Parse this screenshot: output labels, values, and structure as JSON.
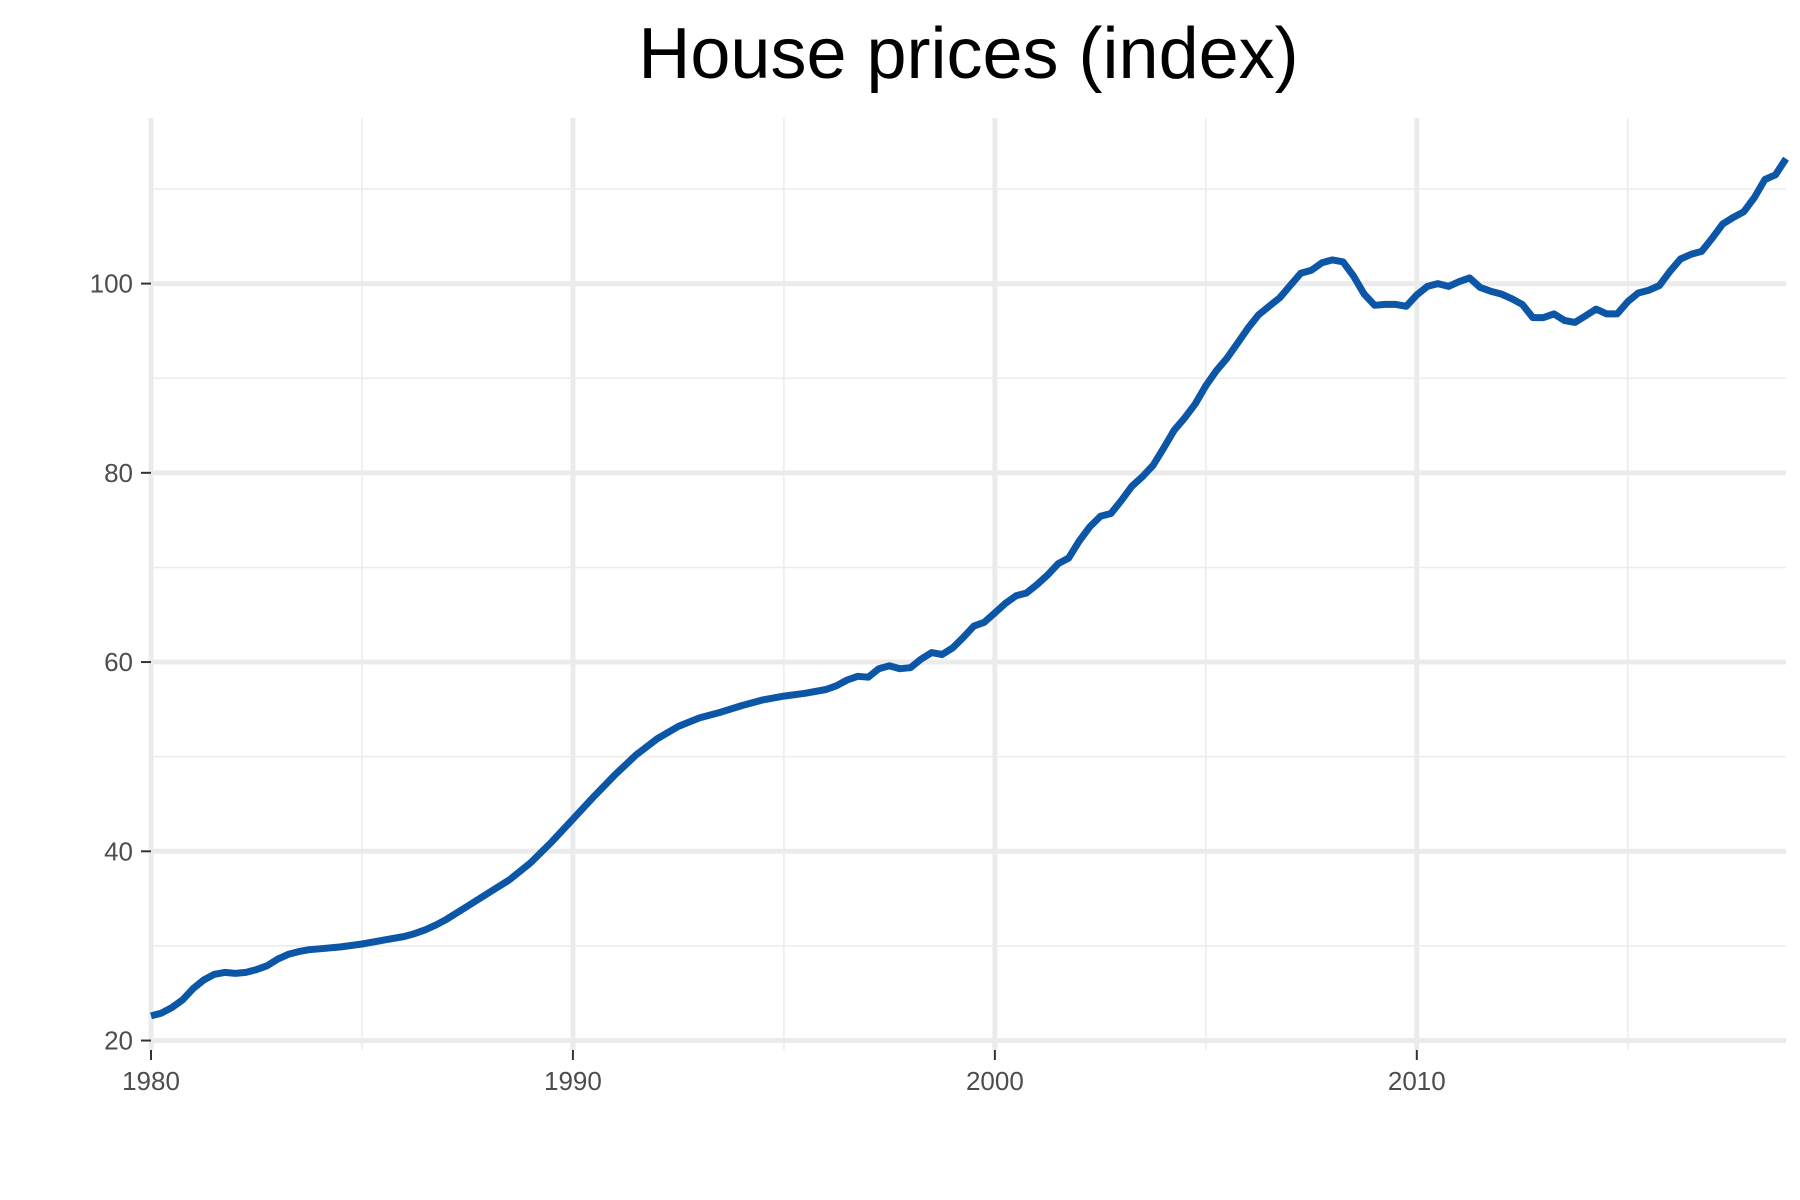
{
  "chart_data": {
    "type": "line",
    "title": "House prices (index)",
    "xlabel": "",
    "ylabel": "",
    "xlim": [
      1980,
      2018.75
    ],
    "ylim": [
      19,
      117.5
    ],
    "x_ticks": [
      1980,
      1990,
      2000,
      2010
    ],
    "y_ticks": [
      20,
      40,
      60,
      80,
      100
    ],
    "grid": true,
    "legend": "none",
    "line_color": "#0c56a8",
    "series": [
      {
        "x": [
          1980.0,
          1980.25,
          1980.5,
          1980.75,
          1981.0,
          1981.25,
          1981.5,
          1981.75,
          1982.0,
          1982.25,
          1982.5,
          1982.75,
          1983.0,
          1983.25,
          1983.5,
          1983.75,
          1984.0,
          1984.5,
          1985.0,
          1985.5,
          1986.0,
          1986.25,
          1986.5,
          1986.75,
          1987.0,
          1987.5,
          1988.0,
          1988.5,
          1989.0,
          1989.5,
          1990.0,
          1990.5,
          1991.0,
          1991.5,
          1992.0,
          1992.5,
          1993.0,
          1993.5,
          1994.0,
          1994.5,
          1995.0,
          1995.5,
          1996.0,
          1996.25,
          1996.5,
          1996.75,
          1997.0,
          1997.25,
          1997.5,
          1997.75,
          1998.0,
          1998.25,
          1998.5,
          1998.75,
          1999.0,
          1999.25,
          1999.5,
          1999.75,
          2000.0,
          2000.25,
          2000.5,
          2000.75,
          2001.0,
          2001.25,
          2001.5,
          2001.75,
          2002.0,
          2002.25,
          2002.5,
          2002.75,
          2003.0,
          2003.25,
          2003.5,
          2003.75,
          2004.0,
          2004.25,
          2004.5,
          2004.75,
          2005.0,
          2005.25,
          2005.5,
          2005.75,
          2006.0,
          2006.25,
          2006.5,
          2006.75,
          2007.0,
          2007.25,
          2007.5,
          2007.75,
          2008.0,
          2008.25,
          2008.5,
          2008.75,
          2009.0,
          2009.25,
          2009.5,
          2009.75,
          2010.0,
          2010.25,
          2010.5,
          2010.75,
          2011.0,
          2011.25,
          2011.5,
          2011.75,
          2012.0,
          2012.25,
          2012.5,
          2012.75,
          2013.0,
          2013.25,
          2013.5,
          2013.75,
          2014.0,
          2014.25,
          2014.5,
          2014.75,
          2015.0,
          2015.25,
          2015.5,
          2015.75,
          2016.0,
          2016.25,
          2016.5,
          2016.75,
          2017.0,
          2017.25,
          2017.5,
          2017.75,
          2018.0,
          2018.25,
          2018.5,
          2018.75
        ],
        "y": [
          22.6,
          22.9,
          23.5,
          24.3,
          25.5,
          26.4,
          27.0,
          27.2,
          27.1,
          27.2,
          27.5,
          27.9,
          28.6,
          29.1,
          29.4,
          29.6,
          29.7,
          29.9,
          30.2,
          30.6,
          31.0,
          31.3,
          31.7,
          32.2,
          32.8,
          34.2,
          35.6,
          37.0,
          38.8,
          41.0,
          43.4,
          45.8,
          48.1,
          50.2,
          51.9,
          53.2,
          54.1,
          54.7,
          55.4,
          56.0,
          56.4,
          56.7,
          57.1,
          57.5,
          58.1,
          58.5,
          58.4,
          59.3,
          59.6,
          59.3,
          59.4,
          60.3,
          61.0,
          60.8,
          61.5,
          62.6,
          63.8,
          64.2,
          65.2,
          66.2,
          67.0,
          67.3,
          68.2,
          69.2,
          70.4,
          71.0,
          72.8,
          74.3,
          75.4,
          75.7,
          77.1,
          78.6,
          79.6,
          80.8,
          82.6,
          84.5,
          85.8,
          87.3,
          89.2,
          90.8,
          92.1,
          93.7,
          95.3,
          96.7,
          97.6,
          98.5,
          99.8,
          101.1,
          101.4,
          102.2,
          102.5,
          102.3,
          100.8,
          98.9,
          97.7,
          97.8,
          97.8,
          97.6,
          98.8,
          99.7,
          100.0,
          99.7,
          100.2,
          100.6,
          99.6,
          99.2,
          98.9,
          98.4,
          97.8,
          96.4,
          96.4,
          96.8,
          96.1,
          95.9,
          96.6,
          97.3,
          96.8,
          96.8,
          98.1,
          99.0,
          99.3,
          99.8,
          101.3,
          102.6,
          103.1,
          103.4,
          104.8,
          106.3,
          107.0,
          107.6,
          109.1,
          111.0,
          111.5,
          113.2
        ]
      }
    ]
  }
}
